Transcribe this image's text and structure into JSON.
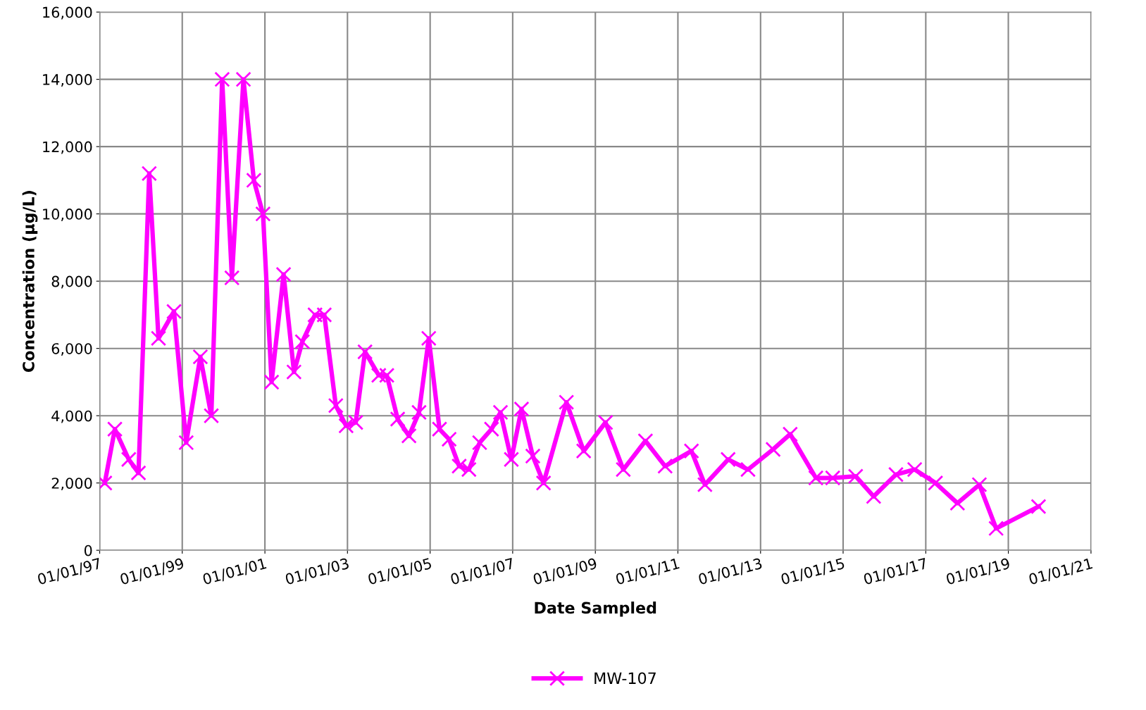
{
  "chart_data": {
    "type": "line",
    "xlabel": "Date Sampled",
    "ylabel": "Concentration (µg/L)",
    "x": [
      "1997-02-15",
      "1997-05-15",
      "1997-09-15",
      "1997-12-10",
      "1998-03-15",
      "1998-06-05",
      "1998-10-20",
      "1999-02-05",
      "1999-06-10",
      "1999-09-15",
      "1999-12-20",
      "2000-03-15",
      "2000-06-25",
      "2000-09-25",
      "2000-12-15",
      "2001-03-01",
      "2001-06-15",
      "2001-09-15",
      "2001-11-28",
      "2002-03-20",
      "2002-06-10",
      "2002-09-20",
      "2002-12-20",
      "2003-03-15",
      "2003-06-05",
      "2003-10-05",
      "2003-12-15",
      "2004-03-20",
      "2004-06-28",
      "2004-09-25",
      "2004-12-20",
      "2005-03-25",
      "2005-06-18",
      "2005-09-15",
      "2005-12-10",
      "2006-03-15",
      "2006-06-28",
      "2006-09-15",
      "2006-12-20",
      "2007-03-20",
      "2007-06-28",
      "2007-10-01",
      "2008-04-20",
      "2008-09-20",
      "2009-04-01",
      "2009-09-05",
      "2010-03-20",
      "2010-09-10",
      "2011-05-01",
      "2011-08-28",
      "2012-03-20",
      "2012-09-12",
      "2013-04-22",
      "2013-09-20",
      "2014-05-05",
      "2014-10-01",
      "2015-04-22",
      "2015-09-28",
      "2016-04-12",
      "2016-09-25",
      "2017-03-28",
      "2017-10-08",
      "2018-04-20",
      "2018-09-15",
      "2019-09-25"
    ],
    "series": [
      {
        "name": "MW-107",
        "color": "#ff00ff",
        "values": [
          2000,
          3600,
          2700,
          2300,
          11200,
          6300,
          7100,
          3200,
          5750,
          4000,
          14000,
          8100,
          14000,
          11000,
          10000,
          5000,
          8200,
          5300,
          6200,
          7000,
          7000,
          4300,
          3700,
          3800,
          5900,
          5200,
          5200,
          3900,
          3400,
          4100,
          6300,
          3600,
          3300,
          2500,
          2400,
          3200,
          3600,
          4100,
          2700,
          4200,
          2800,
          2000,
          4400,
          2950,
          3800,
          2400,
          3250,
          2500,
          2950,
          1950,
          2700,
          2400,
          3000,
          3450,
          2150,
          2150,
          2200,
          1600,
          2250,
          2400,
          2000,
          1400,
          1950,
          650,
          1300
        ]
      }
    ],
    "xlim": [
      "1997-01-01",
      "2021-01-01"
    ],
    "xticks": [
      {
        "value": "1997-01-01",
        "label": "01/01/97"
      },
      {
        "value": "1999-01-01",
        "label": "01/01/99"
      },
      {
        "value": "2001-01-01",
        "label": "01/01/01"
      },
      {
        "value": "2003-01-01",
        "label": "01/01/03"
      },
      {
        "value": "2005-01-01",
        "label": "01/01/05"
      },
      {
        "value": "2007-01-01",
        "label": "01/01/07"
      },
      {
        "value": "2009-01-01",
        "label": "01/01/09"
      },
      {
        "value": "2011-01-01",
        "label": "01/01/11"
      },
      {
        "value": "2013-01-01",
        "label": "01/01/13"
      },
      {
        "value": "2015-01-01",
        "label": "01/01/15"
      },
      {
        "value": "2017-01-01",
        "label": "01/01/17"
      },
      {
        "value": "2019-01-01",
        "label": "01/01/19"
      },
      {
        "value": "2021-01-01",
        "label": "01/01/21"
      }
    ],
    "ylim": [
      0,
      16000
    ],
    "yticks": [
      {
        "value": 0,
        "label": "0"
      },
      {
        "value": 2000,
        "label": "2,000"
      },
      {
        "value": 4000,
        "label": "4,000"
      },
      {
        "value": 6000,
        "label": "6,000"
      },
      {
        "value": 8000,
        "label": "8,000"
      },
      {
        "value": 10000,
        "label": "10,000"
      },
      {
        "value": 12000,
        "label": "12,000"
      },
      {
        "value": 14000,
        "label": "14,000"
      },
      {
        "value": 16000,
        "label": "16,000"
      }
    ],
    "grid": true,
    "legend": "bottom",
    "marker": "cross",
    "line_style": "solid"
  }
}
